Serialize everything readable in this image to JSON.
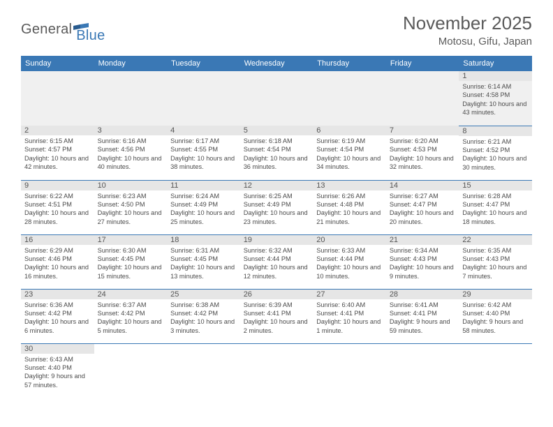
{
  "logo": {
    "general": "General",
    "blue": "Blue"
  },
  "title": "November 2025",
  "location": "Motosu, Gifu, Japan",
  "colors": {
    "header_bg": "#3a78b5",
    "header_text": "#ffffff",
    "border": "#3a78b5",
    "daynum_bg": "#e6e6e6",
    "text": "#4a4a4a"
  },
  "weekdays": [
    "Sunday",
    "Monday",
    "Tuesday",
    "Wednesday",
    "Thursday",
    "Friday",
    "Saturday"
  ],
  "weeks": [
    [
      null,
      null,
      null,
      null,
      null,
      null,
      {
        "n": "1",
        "sr": "Sunrise: 6:14 AM",
        "ss": "Sunset: 4:58 PM",
        "dl": "Daylight: 10 hours and 43 minutes."
      }
    ],
    [
      {
        "n": "2",
        "sr": "Sunrise: 6:15 AM",
        "ss": "Sunset: 4:57 PM",
        "dl": "Daylight: 10 hours and 42 minutes."
      },
      {
        "n": "3",
        "sr": "Sunrise: 6:16 AM",
        "ss": "Sunset: 4:56 PM",
        "dl": "Daylight: 10 hours and 40 minutes."
      },
      {
        "n": "4",
        "sr": "Sunrise: 6:17 AM",
        "ss": "Sunset: 4:55 PM",
        "dl": "Daylight: 10 hours and 38 minutes."
      },
      {
        "n": "5",
        "sr": "Sunrise: 6:18 AM",
        "ss": "Sunset: 4:54 PM",
        "dl": "Daylight: 10 hours and 36 minutes."
      },
      {
        "n": "6",
        "sr": "Sunrise: 6:19 AM",
        "ss": "Sunset: 4:54 PM",
        "dl": "Daylight: 10 hours and 34 minutes."
      },
      {
        "n": "7",
        "sr": "Sunrise: 6:20 AM",
        "ss": "Sunset: 4:53 PM",
        "dl": "Daylight: 10 hours and 32 minutes."
      },
      {
        "n": "8",
        "sr": "Sunrise: 6:21 AM",
        "ss": "Sunset: 4:52 PM",
        "dl": "Daylight: 10 hours and 30 minutes."
      }
    ],
    [
      {
        "n": "9",
        "sr": "Sunrise: 6:22 AM",
        "ss": "Sunset: 4:51 PM",
        "dl": "Daylight: 10 hours and 28 minutes."
      },
      {
        "n": "10",
        "sr": "Sunrise: 6:23 AM",
        "ss": "Sunset: 4:50 PM",
        "dl": "Daylight: 10 hours and 27 minutes."
      },
      {
        "n": "11",
        "sr": "Sunrise: 6:24 AM",
        "ss": "Sunset: 4:49 PM",
        "dl": "Daylight: 10 hours and 25 minutes."
      },
      {
        "n": "12",
        "sr": "Sunrise: 6:25 AM",
        "ss": "Sunset: 4:49 PM",
        "dl": "Daylight: 10 hours and 23 minutes."
      },
      {
        "n": "13",
        "sr": "Sunrise: 6:26 AM",
        "ss": "Sunset: 4:48 PM",
        "dl": "Daylight: 10 hours and 21 minutes."
      },
      {
        "n": "14",
        "sr": "Sunrise: 6:27 AM",
        "ss": "Sunset: 4:47 PM",
        "dl": "Daylight: 10 hours and 20 minutes."
      },
      {
        "n": "15",
        "sr": "Sunrise: 6:28 AM",
        "ss": "Sunset: 4:47 PM",
        "dl": "Daylight: 10 hours and 18 minutes."
      }
    ],
    [
      {
        "n": "16",
        "sr": "Sunrise: 6:29 AM",
        "ss": "Sunset: 4:46 PM",
        "dl": "Daylight: 10 hours and 16 minutes."
      },
      {
        "n": "17",
        "sr": "Sunrise: 6:30 AM",
        "ss": "Sunset: 4:45 PM",
        "dl": "Daylight: 10 hours and 15 minutes."
      },
      {
        "n": "18",
        "sr": "Sunrise: 6:31 AM",
        "ss": "Sunset: 4:45 PM",
        "dl": "Daylight: 10 hours and 13 minutes."
      },
      {
        "n": "19",
        "sr": "Sunrise: 6:32 AM",
        "ss": "Sunset: 4:44 PM",
        "dl": "Daylight: 10 hours and 12 minutes."
      },
      {
        "n": "20",
        "sr": "Sunrise: 6:33 AM",
        "ss": "Sunset: 4:44 PM",
        "dl": "Daylight: 10 hours and 10 minutes."
      },
      {
        "n": "21",
        "sr": "Sunrise: 6:34 AM",
        "ss": "Sunset: 4:43 PM",
        "dl": "Daylight: 10 hours and 9 minutes."
      },
      {
        "n": "22",
        "sr": "Sunrise: 6:35 AM",
        "ss": "Sunset: 4:43 PM",
        "dl": "Daylight: 10 hours and 7 minutes."
      }
    ],
    [
      {
        "n": "23",
        "sr": "Sunrise: 6:36 AM",
        "ss": "Sunset: 4:42 PM",
        "dl": "Daylight: 10 hours and 6 minutes."
      },
      {
        "n": "24",
        "sr": "Sunrise: 6:37 AM",
        "ss": "Sunset: 4:42 PM",
        "dl": "Daylight: 10 hours and 5 minutes."
      },
      {
        "n": "25",
        "sr": "Sunrise: 6:38 AM",
        "ss": "Sunset: 4:42 PM",
        "dl": "Daylight: 10 hours and 3 minutes."
      },
      {
        "n": "26",
        "sr": "Sunrise: 6:39 AM",
        "ss": "Sunset: 4:41 PM",
        "dl": "Daylight: 10 hours and 2 minutes."
      },
      {
        "n": "27",
        "sr": "Sunrise: 6:40 AM",
        "ss": "Sunset: 4:41 PM",
        "dl": "Daylight: 10 hours and 1 minute."
      },
      {
        "n": "28",
        "sr": "Sunrise: 6:41 AM",
        "ss": "Sunset: 4:41 PM",
        "dl": "Daylight: 9 hours and 59 minutes."
      },
      {
        "n": "29",
        "sr": "Sunrise: 6:42 AM",
        "ss": "Sunset: 4:40 PM",
        "dl": "Daylight: 9 hours and 58 minutes."
      }
    ],
    [
      {
        "n": "30",
        "sr": "Sunrise: 6:43 AM",
        "ss": "Sunset: 4:40 PM",
        "dl": "Daylight: 9 hours and 57 minutes."
      },
      null,
      null,
      null,
      null,
      null,
      null
    ]
  ]
}
